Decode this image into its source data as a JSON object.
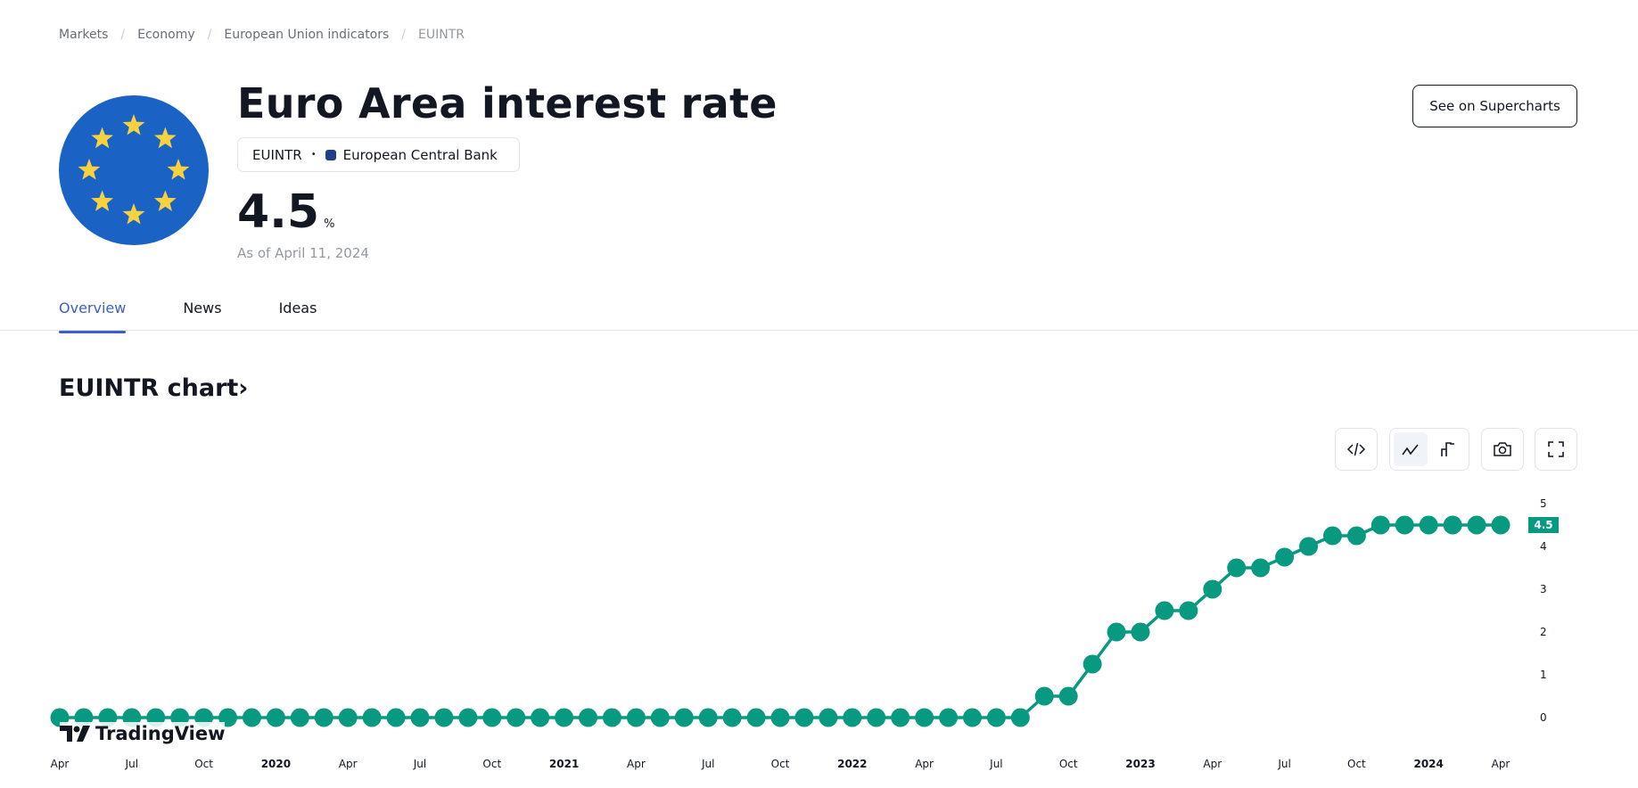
{
  "breadcrumb": [
    "Markets",
    "Economy",
    "European Union indicators",
    "EUINTR"
  ],
  "header": {
    "title": "Euro Area interest rate",
    "symbol": "EUINTR",
    "source": "European Central Bank",
    "value": "4.5",
    "unit": "%",
    "as_of": "As of April 11, 2024",
    "supercharts_label": "See on Supercharts"
  },
  "tabs": [
    {
      "label": "Overview",
      "active": true
    },
    {
      "label": "News"
    },
    {
      "label": "Ideas"
    }
  ],
  "chart_section": {
    "title": "EUINTR chart",
    "chevron": "›"
  },
  "toolbar": {
    "icons": [
      "embed-code-icon",
      "line-chart-icon",
      "step-line-chart-icon",
      "camera-icon",
      "fullscreen-icon"
    ],
    "active": "line-chart-icon"
  },
  "logo_text": "TradingView",
  "colors": {
    "series": "#089981",
    "flag_blue": "#1a63c5",
    "flag_star": "#f7d23e",
    "accent": "#3a5fcd"
  },
  "chart_data": {
    "type": "line",
    "markers": true,
    "x_start": "2019-04",
    "x_end": "2024-04",
    "x_interval": "monthly",
    "values": [
      0,
      0,
      0,
      0,
      0,
      0,
      0,
      0,
      0,
      0,
      0,
      0,
      0,
      0,
      0,
      0,
      0,
      0,
      0,
      0,
      0,
      0,
      0,
      0,
      0,
      0,
      0,
      0,
      0,
      0,
      0,
      0,
      0,
      0,
      0,
      0,
      0,
      0,
      0,
      0,
      3.5e-16,
      0.5,
      0.5,
      1.25,
      2,
      2,
      2.5,
      2.5,
      3,
      3.5,
      3.5,
      3.75,
      4,
      4.25,
      4.25,
      4.5,
      4.5,
      4.5,
      4.5,
      4.5,
      4.5
    ],
    "ylim": [
      0,
      5
    ],
    "yticks": [
      "0",
      "1",
      "2",
      "3",
      "4",
      "5"
    ],
    "xticks": [
      {
        "label": "Apr",
        "m": 0
      },
      {
        "label": "Jul",
        "m": 3
      },
      {
        "label": "Oct",
        "m": 6
      },
      {
        "label": "2020",
        "m": 9,
        "year": true
      },
      {
        "label": "Apr",
        "m": 12
      },
      {
        "label": "Jul",
        "m": 15
      },
      {
        "label": "Oct",
        "m": 18
      },
      {
        "label": "2021",
        "m": 21,
        "year": true
      },
      {
        "label": "Apr",
        "m": 24
      },
      {
        "label": "Jul",
        "m": 27
      },
      {
        "label": "Oct",
        "m": 30
      },
      {
        "label": "2022",
        "m": 33,
        "year": true
      },
      {
        "label": "Apr",
        "m": 36
      },
      {
        "label": "Jul",
        "m": 39
      },
      {
        "label": "Oct",
        "m": 42
      },
      {
        "label": "2023",
        "m": 45,
        "year": true
      },
      {
        "label": "Apr",
        "m": 48
      },
      {
        "label": "Jul",
        "m": 51
      },
      {
        "label": "Oct",
        "m": 54
      },
      {
        "label": "2024",
        "m": 57,
        "year": true
      },
      {
        "label": "Apr",
        "m": 60
      }
    ],
    "last_value_label": "4.5",
    "grid": false
  }
}
